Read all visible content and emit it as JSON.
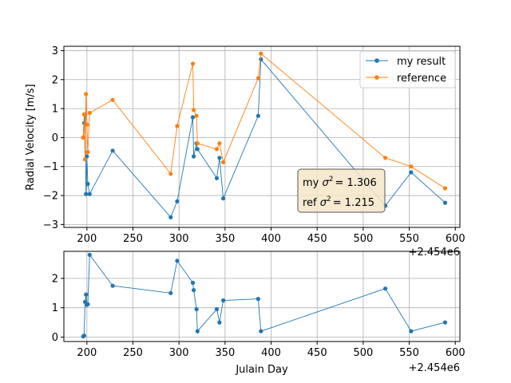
{
  "chart_data": [
    {
      "type": "line",
      "xlabel": "",
      "ylabel": "Radial Velocity [m/s]",
      "x_offset_label": "+2.454e6",
      "xlim": [
        175,
        605
      ],
      "ylim": [
        -3.1,
        3.15
      ],
      "xticks": [
        200,
        250,
        300,
        350,
        400,
        450,
        500,
        550,
        600
      ],
      "yticks": [
        -3,
        -2,
        -1,
        0,
        1,
        2,
        3
      ],
      "grid": true,
      "legend_position": "upper right",
      "legend": [
        "my result",
        "reference"
      ],
      "series": [
        {
          "name": "my result",
          "color": "#1f77b4",
          "x": [
            196,
            197,
            198,
            199,
            200,
            201,
            203,
            228,
            291,
            298,
            315,
            316,
            319,
            320,
            341,
            344,
            348,
            386,
            389,
            524,
            552,
            589
          ],
          "y": [
            0.0,
            0.5,
            0.8,
            -1.95,
            -0.65,
            -1.6,
            -1.95,
            -0.45,
            -2.75,
            -2.2,
            0.7,
            -0.65,
            -0.2,
            -0.4,
            -1.4,
            -0.7,
            -2.1,
            0.75,
            2.7,
            -2.35,
            -1.2,
            -2.25
          ]
        },
        {
          "name": "reference",
          "color": "#ff7f0e",
          "x": [
            196,
            197,
            198,
            199,
            200,
            201,
            203,
            228,
            291,
            298,
            315,
            316,
            319,
            320,
            341,
            344,
            348,
            386,
            389,
            524,
            552,
            589
          ],
          "y": [
            0.0,
            0.8,
            -0.75,
            1.5,
            0.45,
            -0.5,
            0.85,
            1.3,
            -1.25,
            0.4,
            2.55,
            0.95,
            0.75,
            -0.2,
            -0.4,
            -0.2,
            -0.85,
            2.05,
            2.9,
            -0.7,
            -1.0,
            -1.75
          ]
        }
      ],
      "annotation": {
        "line1_prefix": "my ",
        "line1_value": "= 1.306",
        "line2_prefix": "ref ",
        "line2_value": "= 1.215",
        "symbol": "σ",
        "superscript": "2",
        "box_face": "#f5e6c8"
      }
    },
    {
      "type": "line",
      "xlabel": "Julain Day",
      "ylabel": "",
      "x_offset_label": "+2.454e6",
      "xlim": [
        175,
        605
      ],
      "ylim": [
        -0.15,
        2.92
      ],
      "xticks": [
        200,
        250,
        300,
        350,
        400,
        450,
        500,
        550,
        600
      ],
      "yticks": [
        0,
        1,
        2
      ],
      "grid": true,
      "series": [
        {
          "color": "#1f77b4",
          "x": [
            196,
            197,
            198,
            199,
            200,
            201,
            203,
            228,
            291,
            298,
            315,
            316,
            319,
            320,
            341,
            344,
            348,
            386,
            389,
            524,
            552,
            589
          ],
          "y": [
            0.02,
            0.05,
            1.2,
            1.45,
            1.1,
            1.12,
            2.8,
            1.75,
            1.5,
            2.6,
            1.85,
            1.6,
            0.95,
            0.2,
            0.95,
            0.5,
            1.25,
            1.3,
            0.2,
            1.65,
            0.2,
            0.5
          ]
        }
      ]
    }
  ]
}
